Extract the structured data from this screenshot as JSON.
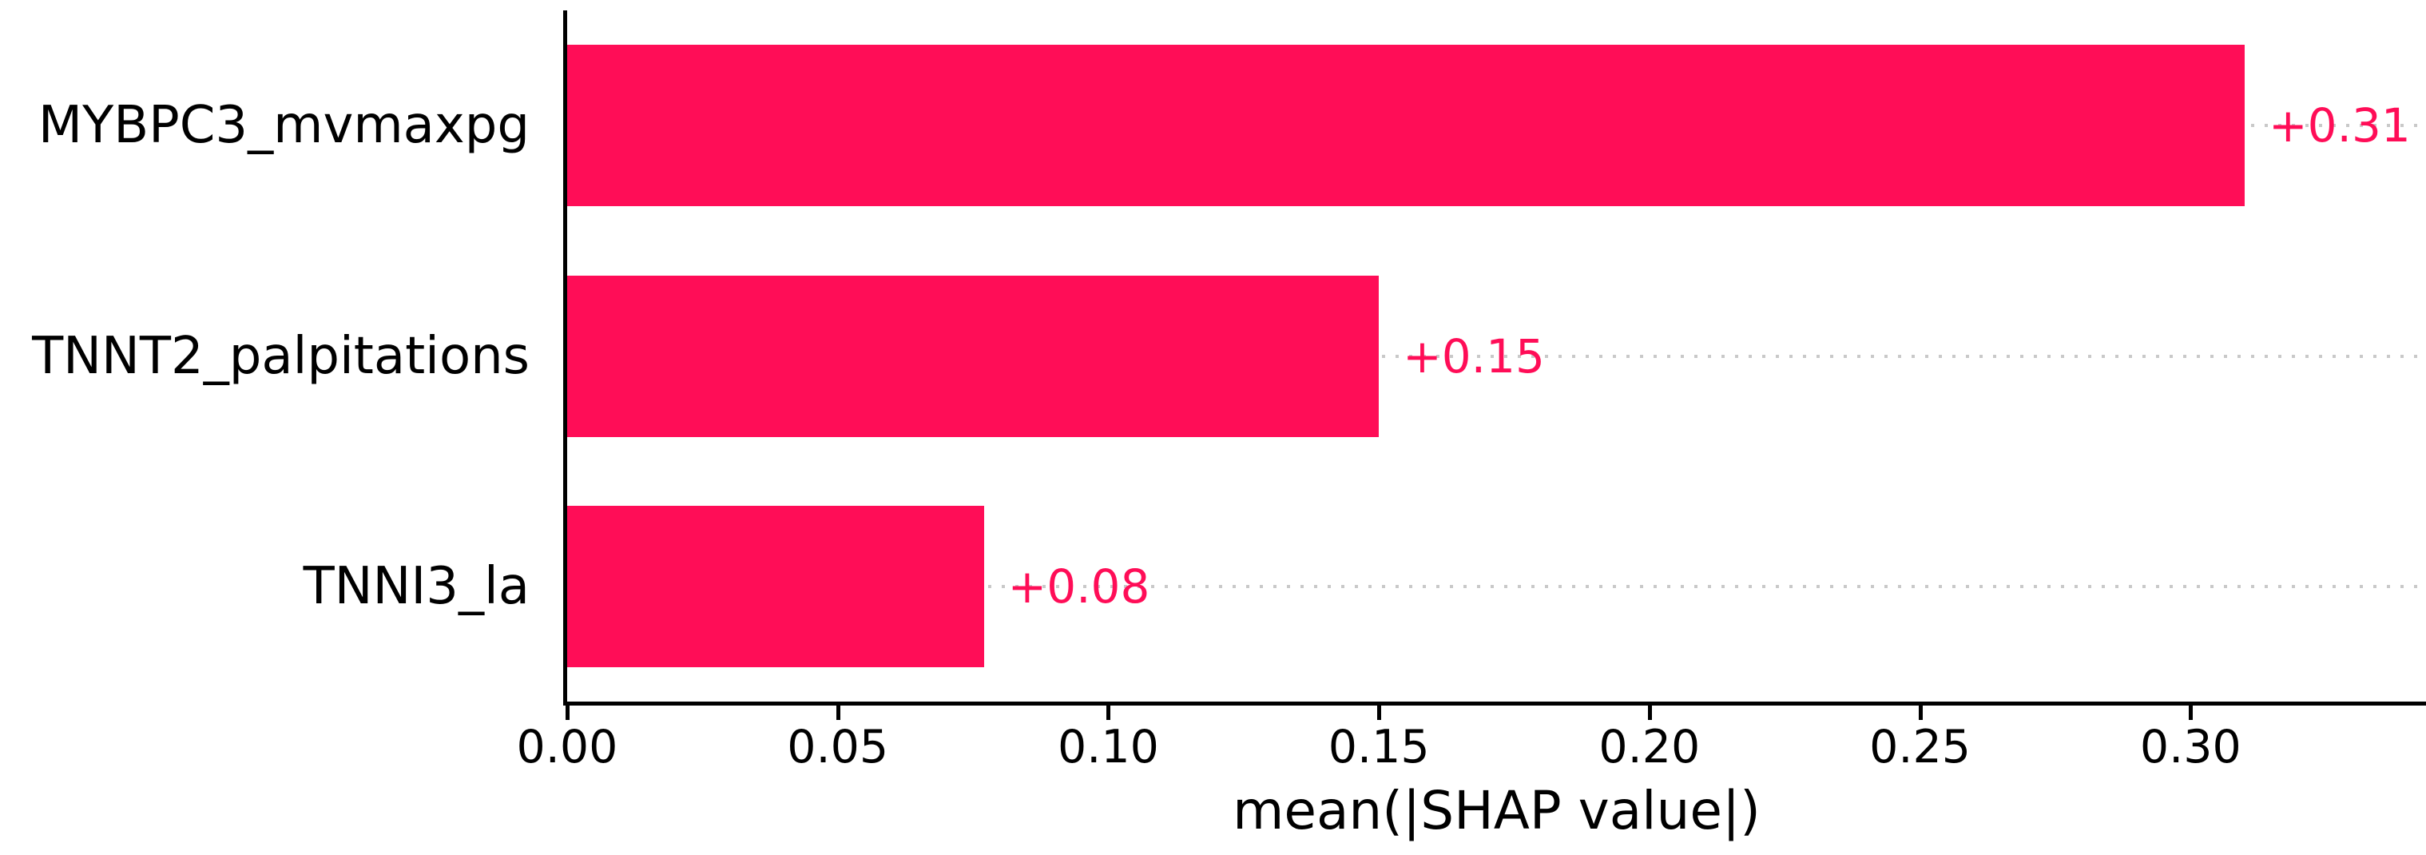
{
  "chart_data": {
    "type": "bar",
    "orientation": "horizontal",
    "title": "",
    "xlabel": "mean(|SHAP value|)",
    "ylabel": "",
    "categories": [
      "MYBPC3_mvmaxpg",
      "TNNT2_palpitations",
      "TNNI3_la"
    ],
    "values": [
      0.31,
      0.15,
      0.077
    ],
    "value_labels": [
      "+0.31",
      "+0.15",
      "+0.08"
    ],
    "xticks": [
      0.0,
      0.05,
      0.1,
      0.15,
      0.2,
      0.25,
      0.3
    ],
    "xtick_labels": [
      "0.00",
      "0.05",
      "0.10",
      "0.15",
      "0.20",
      "0.25",
      "0.30"
    ],
    "xlim": [
      0,
      0.3435
    ],
    "legend": null,
    "grid": {
      "axis": "rows",
      "style": "dotted",
      "color": "#c9c9c9"
    },
    "colors": {
      "bar": "#ff0d57",
      "value_label": "#ff0d57",
      "axis": "#000000",
      "tick_label": "#000000",
      "background": "#ffffff"
    }
  }
}
